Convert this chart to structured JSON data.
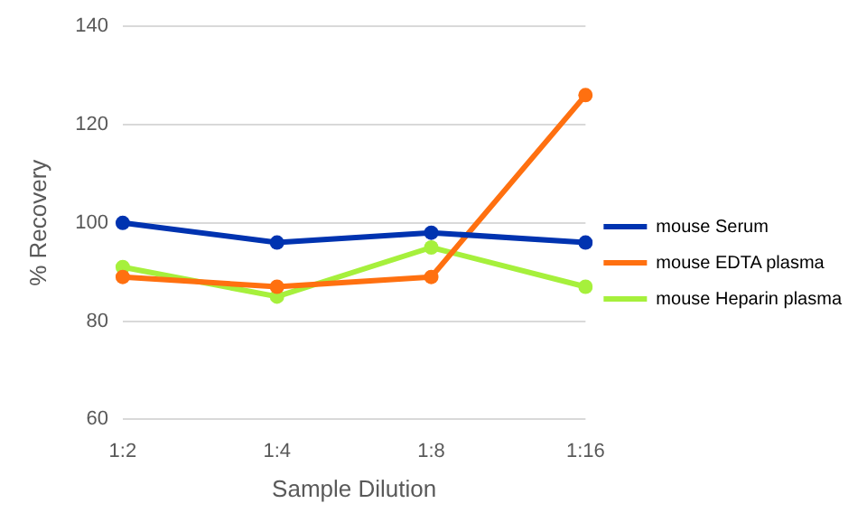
{
  "chart_data": {
    "type": "line",
    "xlabel": "Sample Dilution",
    "ylabel": "% Recovery",
    "categories": [
      "1:2",
      "1:4",
      "1:8",
      "1:16"
    ],
    "series": [
      {
        "name": "mouse Serum",
        "color": "#0033b0",
        "values": [
          100,
          96,
          98,
          96
        ]
      },
      {
        "name": "mouse EDTA plasma",
        "color": "#ff7010",
        "values": [
          89,
          87,
          89,
          126
        ]
      },
      {
        "name": "mouse Heparin plasma",
        "color": "#a6f03c",
        "values": [
          91,
          85,
          95,
          87
        ]
      }
    ],
    "ylim": [
      60,
      140
    ],
    "yticks": [
      60,
      80,
      100,
      120,
      140
    ],
    "grid": "y",
    "legend": "right",
    "marker": "circle",
    "line_style": "solid"
  }
}
